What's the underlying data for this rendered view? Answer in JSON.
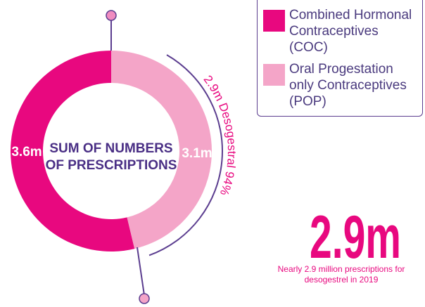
{
  "chart_data": {
    "type": "donut",
    "categories": [
      "Combined Hormonal Contraceptives (COC)",
      "Oral Progestation only Contraceptives (POP)"
    ],
    "values": [
      3.6,
      3.1
    ],
    "value_labels": [
      "3.6m",
      "3.1m"
    ],
    "colors": [
      "#e8087f",
      "#f4a5c8"
    ],
    "center_label": "SUM OF NUMBERS OF PRESCRIPTIONS",
    "arc_annotation": "2.9m Desogestral 94%",
    "highlight": "2.9m",
    "highlight_caption": "Nearly 2.9 million prescriptions for desogestrel in 2019"
  }
}
